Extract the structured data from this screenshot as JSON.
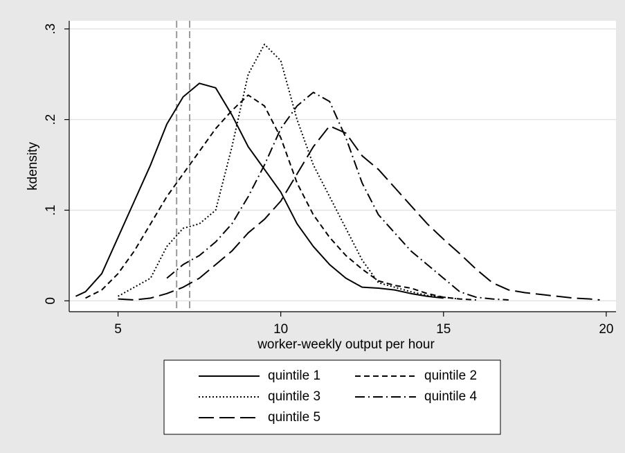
{
  "chart_data": {
    "type": "line",
    "x_label": "worker-weekly output per hour",
    "y_label": "kdensity",
    "xlim": [
      3.5,
      20.3
    ],
    "ylim": [
      -0.012,
      0.309
    ],
    "xticks": [
      5,
      10,
      15,
      20
    ],
    "yticks": [
      0,
      {
        "value": 0.1,
        "label": ".1"
      },
      {
        "value": 0.2,
        "label": ".2"
      },
      {
        "value": 0.3,
        "label": ".3"
      }
    ],
    "grid": true,
    "legend": "bottom",
    "legend_columns": 2,
    "vlines": [
      6.8,
      7.2
    ],
    "vline_color": "#999999",
    "series": [
      {
        "name": "quintile 1",
        "color": "#000000",
        "dash": "none",
        "x": [
          3.7,
          4,
          4.5,
          5,
          5.5,
          6,
          6.5,
          7,
          7.5,
          8,
          8.5,
          9,
          9.5,
          10,
          10.5,
          11,
          11.5,
          12,
          12.5,
          13,
          13.5,
          14,
          14.5,
          15
        ],
        "values": [
          0.005,
          0.01,
          0.03,
          0.07,
          0.11,
          0.15,
          0.195,
          0.225,
          0.24,
          0.235,
          0.205,
          0.17,
          0.145,
          0.12,
          0.085,
          0.06,
          0.04,
          0.025,
          0.015,
          0.014,
          0.012,
          0.008,
          0.005,
          0.003
        ]
      },
      {
        "name": "quintile 2",
        "color": "#000000",
        "dash": "8,5",
        "x": [
          4,
          4.5,
          5,
          5.5,
          6,
          6.5,
          7,
          7.5,
          8,
          8.5,
          9,
          9.5,
          10,
          10.5,
          11,
          11.5,
          12,
          12.5,
          13,
          13.5,
          14,
          14.5,
          15,
          15.5,
          16
        ],
        "values": [
          0.003,
          0.012,
          0.03,
          0.055,
          0.085,
          0.115,
          0.14,
          0.165,
          0.19,
          0.21,
          0.227,
          0.215,
          0.18,
          0.13,
          0.095,
          0.07,
          0.05,
          0.035,
          0.022,
          0.017,
          0.014,
          0.008,
          0.004,
          0.002,
          0.001
        ]
      },
      {
        "name": "quintile 3",
        "color": "#000000",
        "dash": "2,3",
        "x": [
          5,
          5.5,
          6,
          6.5,
          7,
          7.5,
          8,
          8.5,
          9,
          9.5,
          10,
          10.5,
          11,
          11.5,
          12,
          12.5,
          13,
          13.5,
          14,
          14.5,
          15,
          15.5
        ],
        "values": [
          0.005,
          0.015,
          0.025,
          0.06,
          0.08,
          0.085,
          0.1,
          0.17,
          0.25,
          0.283,
          0.265,
          0.2,
          0.15,
          0.115,
          0.08,
          0.045,
          0.02,
          0.015,
          0.01,
          0.006,
          0.004,
          0.002
        ]
      },
      {
        "name": "quintile 4",
        "color": "#000000",
        "dash": "14,5,2,5",
        "x": [
          6.5,
          7,
          7.5,
          8,
          8.5,
          9,
          9.5,
          10,
          10.5,
          11,
          11.5,
          12,
          12.5,
          13,
          13.5,
          14,
          14.5,
          15,
          15.5,
          16,
          16.5,
          17
        ],
        "values": [
          0.025,
          0.04,
          0.05,
          0.065,
          0.085,
          0.115,
          0.15,
          0.19,
          0.215,
          0.23,
          0.22,
          0.18,
          0.13,
          0.095,
          0.075,
          0.055,
          0.04,
          0.025,
          0.01,
          0.004,
          0.002,
          0.001
        ]
      },
      {
        "name": "quintile 5",
        "color": "#000000",
        "dash": "22,8",
        "x": [
          5,
          5.5,
          6,
          6.5,
          7,
          7.5,
          8,
          8.5,
          9,
          9.5,
          10,
          10.5,
          11,
          11.5,
          12,
          12.5,
          13,
          13.5,
          14,
          14.5,
          15,
          15.5,
          16,
          16.5,
          17,
          17.5,
          18,
          18.5,
          19,
          19.5,
          19.8
        ],
        "values": [
          0.002,
          0.001,
          0.003,
          0.008,
          0.015,
          0.025,
          0.04,
          0.055,
          0.075,
          0.09,
          0.11,
          0.14,
          0.17,
          0.193,
          0.185,
          0.16,
          0.145,
          0.125,
          0.105,
          0.085,
          0.068,
          0.052,
          0.035,
          0.02,
          0.012,
          0.009,
          0.007,
          0.005,
          0.003,
          0.002,
          0.001
        ]
      }
    ]
  }
}
